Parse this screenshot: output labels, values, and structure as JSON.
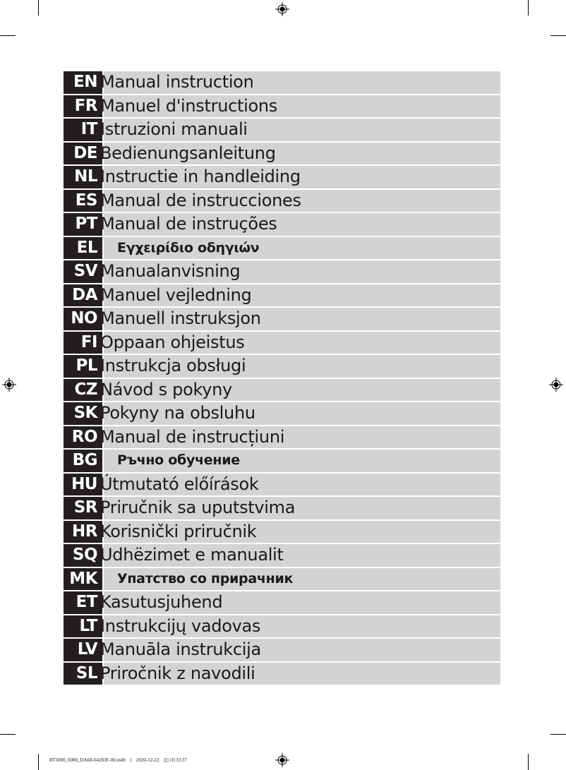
{
  "languages": [
    {
      "code": "EN",
      "title": "Manual instruction"
    },
    {
      "code": "FR",
      "title": "Manuel d'instructions"
    },
    {
      "code": "IT",
      "title": "Istruzioni manuali"
    },
    {
      "code": "DE",
      "title": "Bedienungsanleitung"
    },
    {
      "code": "NL",
      "title": "Instructie in handleiding"
    },
    {
      "code": "ES",
      "title": "Manual de instrucciones"
    },
    {
      "code": "PT",
      "title": "Manual de instruções"
    },
    {
      "code": "EL",
      "title": "Εγχειρίδιο οδηγιών"
    },
    {
      "code": "SV",
      "title": "Manualanvisning"
    },
    {
      "code": "DA",
      "title": "Manuel vejledning"
    },
    {
      "code": "NO",
      "title": "Manuell instruksjon"
    },
    {
      "code": "FI",
      "title": "Oppaan ohjeistus"
    },
    {
      "code": "PL",
      "title": "Instrukcja obsługi"
    },
    {
      "code": "CZ",
      "title": "Návod s pokyny"
    },
    {
      "code": "SK",
      "title": "Pokyny na obsluhu"
    },
    {
      "code": "RO",
      "title": "Manual de instrucțiuni"
    },
    {
      "code": "BG",
      "title": "Ръчно обучение"
    },
    {
      "code": "HU",
      "title": "Útmutató előírások"
    },
    {
      "code": "SR",
      "title": "Priručnik sa uputstvima"
    },
    {
      "code": "HR",
      "title": "Korisnički priručnik"
    },
    {
      "code": "SQ",
      "title": "Udhëzimet e manualit"
    },
    {
      "code": "MK",
      "title": "Упатство со прирачник"
    },
    {
      "code": "ET",
      "title": "Kasutusjuhend"
    },
    {
      "code": "LT",
      "title": "Instrukcijų vadovas"
    },
    {
      "code": "LV",
      "title": "Manuāla instrukcija"
    },
    {
      "code": "SL",
      "title": "Priročnik z navodili"
    }
  ],
  "footer": {
    "file": "RT5000_6000_DA68-04283F-00.indb",
    "page": "1",
    "date": "2020-12-22",
    "time_prefix": "▯▯",
    "time": "10:33:37"
  },
  "colors": {
    "label_bg": "#231f20",
    "bar_bg": "#d3d3d3"
  }
}
